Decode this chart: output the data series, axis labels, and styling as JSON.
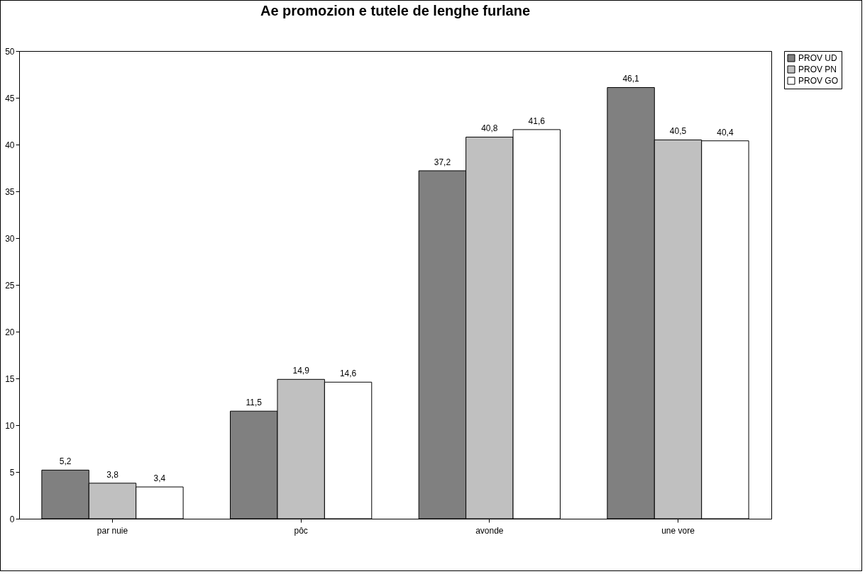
{
  "chart_data": {
    "type": "bar",
    "title": "Ae promozion e tutele de lenghe furlane",
    "categories": [
      "par nuie",
      "pôc",
      "avonde",
      "une vore"
    ],
    "series": [
      {
        "name": "PROV UD",
        "color": "#808080",
        "values": [
          5.2,
          11.5,
          37.2,
          46.1
        ],
        "value_labels": [
          "5,2",
          "11,5",
          "37,2",
          "46,1"
        ]
      },
      {
        "name": "PROV PN",
        "color": "#c0c0c0",
        "values": [
          3.8,
          14.9,
          40.8,
          40.5
        ],
        "value_labels": [
          "3,8",
          "14,9",
          "40,8",
          "40,5"
        ]
      },
      {
        "name": "PROV GO",
        "color": "#ffffff",
        "values": [
          3.4,
          14.6,
          41.6,
          40.4
        ],
        "value_labels": [
          "3,4",
          "14,6",
          "41,6",
          "40,4"
        ]
      }
    ],
    "ylim": [
      0,
      50
    ],
    "yticks": [
      0,
      5,
      10,
      15,
      20,
      25,
      30,
      35,
      40,
      45,
      50
    ],
    "grid": false,
    "legend": "right"
  }
}
